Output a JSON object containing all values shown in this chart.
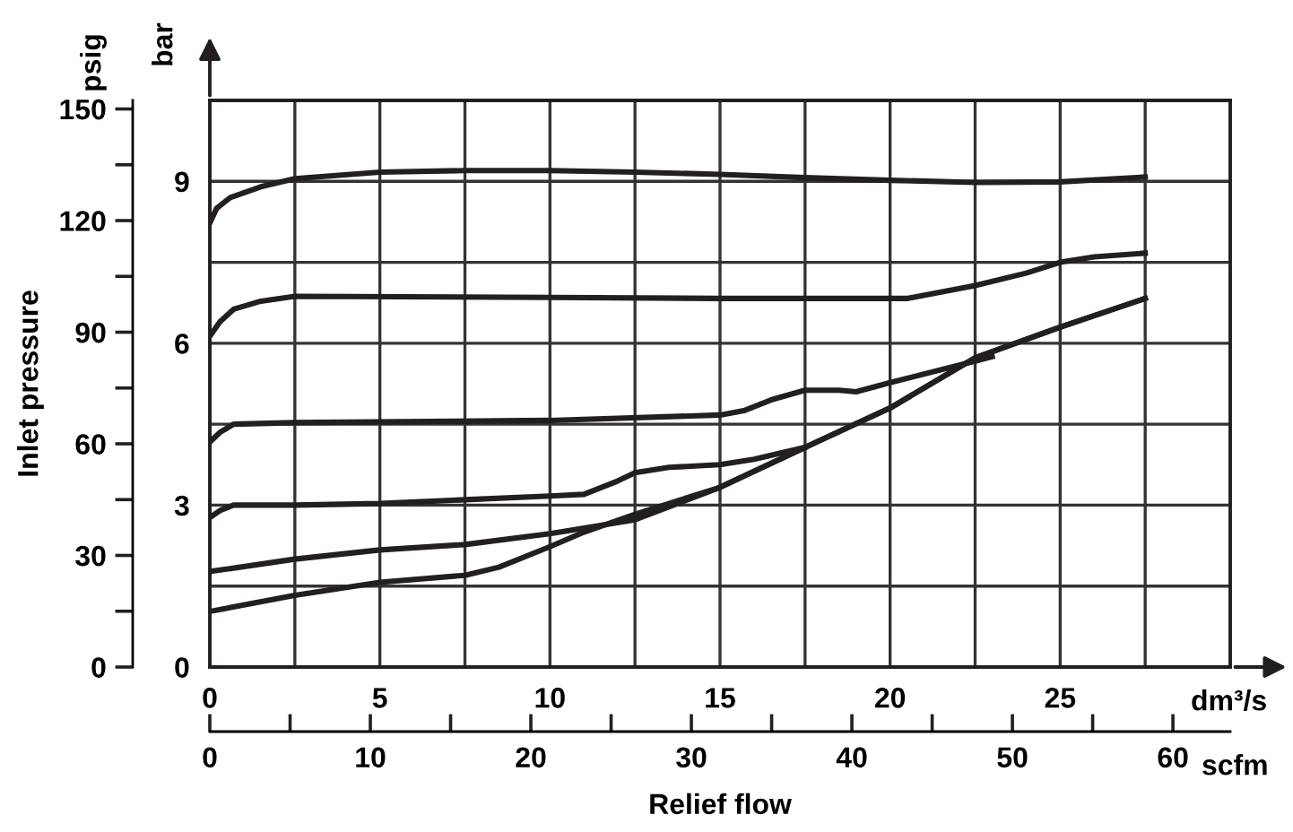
{
  "chart_data": {
    "type": "line",
    "xlabel": "Relief flow",
    "y2label": "Inlet pressure",
    "annotations": [
      "psig",
      "bar",
      "dm³/s",
      "scfm"
    ],
    "xlim": [
      0,
      30
    ],
    "xticks": [
      0,
      {
        "value": 2.5,
        "label": null
      },
      5,
      {
        "value": 7.5,
        "label": null
      },
      10,
      {
        "value": 12.5,
        "label": null
      },
      15,
      {
        "value": 17.5,
        "label": null
      },
      20,
      {
        "value": 22.5,
        "label": null
      },
      25,
      {
        "value": 27.5,
        "label": null
      }
    ],
    "ylim": [
      0,
      10.5
    ],
    "yticks": [
      0,
      {
        "value": 1.5,
        "label": null
      },
      3,
      {
        "value": 4.5,
        "label": null
      },
      6,
      {
        "value": 7.5,
        "label": null
      },
      9
    ],
    "y2lim": [
      0,
      152.3
    ],
    "y2ticks": [
      0,
      30,
      60,
      90,
      120,
      150
    ],
    "x2lim": [
      0,
      63.57
    ],
    "x2ticks": [
      0,
      10,
      20,
      30,
      40,
      50,
      60
    ],
    "grid": true,
    "legend": false,
    "marker": "none",
    "line_style": "solid",
    "series": [
      {
        "color": "#231f20",
        "x": [
          0,
          0.2,
          0.6,
          1.5,
          2.5,
          5,
          7.5,
          10,
          12.5,
          15,
          17.5,
          20,
          22.5,
          25,
          27.5
        ],
        "values": [
          8.23,
          8.5,
          8.7,
          8.9,
          9.05,
          9.17,
          9.2,
          9.2,
          9.17,
          9.13,
          9.07,
          9.02,
          8.98,
          8.99,
          9.08
        ]
      },
      {
        "color": "#231f20",
        "x": [
          0,
          0.3,
          0.7,
          1.5,
          2.5,
          10,
          15,
          20.5,
          22.5,
          24,
          25,
          26,
          27.5
        ],
        "values": [
          6.13,
          6.4,
          6.63,
          6.78,
          6.87,
          6.85,
          6.83,
          6.83,
          7.07,
          7.3,
          7.5,
          7.6,
          7.67
        ]
      },
      {
        "color": "#231f20",
        "x": [
          0,
          0.3,
          0.7,
          2.5,
          10,
          15,
          15.7,
          16.5,
          17.5,
          18.5,
          19,
          20,
          22.5,
          23
        ],
        "values": [
          4.17,
          4.35,
          4.5,
          4.53,
          4.57,
          4.67,
          4.75,
          4.95,
          5.13,
          5.13,
          5.1,
          5.27,
          5.67,
          5.75
        ]
      },
      {
        "color": "#231f20",
        "x": [
          0,
          0.3,
          0.7,
          2.5,
          5,
          7.5,
          10,
          11,
          12,
          12.5,
          13.5,
          15,
          16,
          17.5
        ],
        "values": [
          2.77,
          2.9,
          3.0,
          3.0,
          3.03,
          3.1,
          3.17,
          3.2,
          3.45,
          3.6,
          3.7,
          3.75,
          3.85,
          4.07
        ]
      },
      {
        "color": "#231f20",
        "x": [
          0,
          2.5,
          5,
          7.5,
          10,
          12.5,
          15,
          17.5,
          20,
          22.5,
          25,
          27.5
        ],
        "values": [
          1.77,
          2.0,
          2.17,
          2.27,
          2.47,
          2.73,
          3.33,
          4.07,
          4.8,
          5.73,
          6.3,
          6.83
        ]
      },
      {
        "color": "#231f20",
        "x": [
          0,
          2.5,
          5,
          7.5,
          8.5,
          10,
          11,
          12.5,
          15,
          17.5,
          20,
          22.5,
          25,
          27.5
        ],
        "values": [
          1.03,
          1.33,
          1.57,
          1.7,
          1.85,
          2.23,
          2.5,
          2.83,
          3.33,
          4.07,
          4.8,
          5.73,
          6.3,
          6.83
        ]
      }
    ]
  }
}
